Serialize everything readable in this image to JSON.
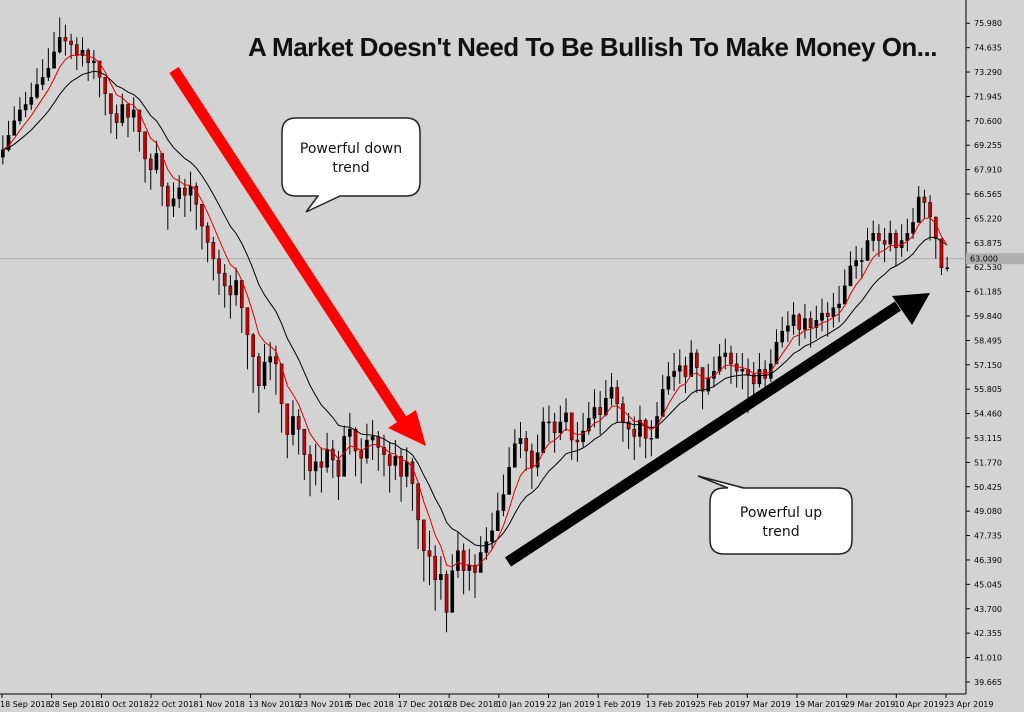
{
  "title": "A Market Doesn't Need To Be Bullish To Make Money On...",
  "price_marker": "63.000",
  "callouts": {
    "down": [
      "Powerful down",
      "trend"
    ],
    "up": [
      "Powerful up",
      "trend"
    ]
  },
  "colors": {
    "background": "#d3d3d3",
    "bull_candle": "#000000",
    "bear_candle": "#cc0000",
    "fast_ma": "#e00000",
    "slow_ma": "#000000",
    "down_arrow": "#ff0000",
    "up_arrow": "#000000",
    "price_line": "#b0b0b0"
  },
  "chart_data": {
    "type": "candlestick",
    "y_ticks": [
      "75.980",
      "74.635",
      "73.290",
      "71.945",
      "70.600",
      "69.255",
      "67.910",
      "66.565",
      "65.220",
      "63.875",
      "62.530",
      "61.185",
      "59.840",
      "58.495",
      "57.150",
      "55.805",
      "54.460",
      "53.115",
      "51.770",
      "50.425",
      "49.080",
      "47.735",
      "46.390",
      "45.045",
      "43.700",
      "42.355",
      "41.010",
      "39.665"
    ],
    "x_ticks": [
      "18 Sep 2018",
      "28 Sep 2018",
      "10 Oct 2018",
      "22 Oct 2018",
      "1 Nov 2018",
      "13 Nov 2018",
      "23 Nov 2018",
      "5 Dec 2018",
      "17 Dec 2018",
      "28 Dec 2018",
      "10 Jan 2019",
      "22 Jan 2019",
      "1 Feb 2019",
      "13 Feb 2019",
      "25 Feb 2019",
      "7 Mar 2019",
      "19 Mar 2019",
      "29 Mar 2019",
      "10 Apr 2019",
      "23 Apr 2019"
    ],
    "ylim": [
      39.0,
      76.6
    ],
    "series": [
      {
        "name": "",
        "kind": "ema_fast"
      },
      {
        "name": "",
        "kind": "ema_slow"
      }
    ],
    "closes": [
      69.0,
      69.8,
      70.6,
      71.2,
      71.5,
      71.9,
      72.6,
      73.0,
      73.5,
      74.4,
      75.2,
      75.0,
      74.8,
      74.2,
      74.5,
      73.8,
      73.9,
      73.0,
      72.1,
      71.0,
      70.5,
      71.5,
      70.8,
      71.2,
      70.0,
      68.5,
      67.9,
      68.8,
      67.0,
      65.9,
      66.3,
      66.9,
      66.5,
      67.0,
      66.0,
      64.8,
      63.9,
      63.0,
      62.2,
      61.5,
      61.0,
      61.8,
      60.3,
      58.8,
      57.6,
      56.0,
      57.3,
      57.6,
      57.2,
      55.0,
      53.3,
      54.3,
      53.6,
      52.2,
      51.3,
      51.8,
      51.5,
      52.5,
      51.9,
      51.0,
      53.2,
      53.6,
      52.4,
      52.0,
      53.0,
      53.2,
      52.6,
      52.2,
      51.6,
      52.1,
      51.0,
      51.8,
      50.6,
      48.6,
      46.9,
      46.6,
      45.3,
      45.6,
      43.5,
      45.8,
      46.9,
      45.8,
      46.1,
      45.7,
      46.8,
      47.4,
      48.0,
      49.1,
      50.0,
      51.5,
      52.8,
      53.1,
      52.4,
      51.5,
      52.3,
      54.0,
      54.0,
      53.4,
      54.0,
      54.5,
      53.0,
      52.9,
      53.5,
      54.2,
      54.8,
      54.4,
      55.3,
      55.9,
      55.0,
      54.0,
      53.6,
      53.2,
      54.1,
      53.1,
      53.1,
      54.3,
      55.8,
      56.5,
      56.8,
      57.1,
      56.5,
      57.8,
      57.0,
      55.7,
      56.4,
      56.8,
      57.6,
      57.8,
      57.2,
      56.8,
      56.9,
      56.6,
      56.1,
      56.9,
      56.4,
      57.2,
      58.4,
      59.0,
      59.3,
      59.9,
      59.1,
      59.7,
      59.2,
      59.6,
      60.0,
      59.8,
      60.3,
      60.5,
      61.5,
      62.6,
      62.9,
      62.9,
      64.0,
      64.4,
      64.0,
      63.8,
      64.4,
      63.6,
      64.0,
      64.4,
      65.0,
      66.4,
      66.1,
      65.3,
      64.1,
      62.5,
      62.5
    ],
    "highs": [
      69.8,
      70.6,
      71.4,
      71.9,
      72.2,
      72.7,
      73.5,
      74.0,
      74.6,
      75.5,
      76.3,
      75.9,
      75.4,
      75.2,
      75.2,
      74.6,
      74.5,
      73.8,
      73.0,
      71.9,
      71.5,
      72.1,
      71.6,
      71.9,
      71.2,
      69.8,
      68.8,
      69.5,
      68.3,
      67.2,
      67.2,
      67.6,
      67.4,
      67.8,
      67.2,
      66.0,
      65.0,
      64.2,
      63.5,
      62.7,
      62.1,
      62.5,
      61.7,
      60.2,
      58.9,
      57.8,
      58.3,
      58.4,
      58.2,
      56.9,
      54.9,
      55.2,
      54.7,
      53.6,
      52.7,
      52.8,
      52.6,
      53.4,
      53.0,
      52.4,
      53.8,
      54.5,
      53.7,
      53.1,
      53.9,
      54.1,
      53.5,
      53.3,
      52.9,
      53.0,
      52.5,
      52.6,
      52.0,
      50.1,
      48.5,
      48.0,
      47.2,
      46.6,
      45.8,
      46.7,
      47.9,
      47.3,
      47.0,
      46.7,
      47.7,
      48.2,
      49.0,
      50.1,
      51.1,
      52.6,
      53.6,
      54.0,
      53.5,
      52.8,
      53.3,
      54.8,
      54.9,
      54.5,
      54.9,
      55.3,
      54.5,
      54.0,
      54.5,
      55.1,
      55.8,
      55.7,
      56.3,
      56.7,
      56.3,
      55.4,
      54.5,
      54.3,
      54.9,
      54.2,
      54.1,
      55.1,
      56.6,
      57.3,
      57.8,
      58.0,
      57.6,
      58.5,
      58.0,
      57.0,
      57.2,
      57.6,
      58.3,
      58.6,
      58.2,
      57.8,
      57.8,
      57.5,
      57.3,
      57.8,
      57.4,
      58.0,
      59.1,
      59.8,
      60.1,
      60.6,
      60.0,
      60.5,
      60.1,
      60.4,
      60.8,
      60.6,
      61.1,
      61.5,
      62.4,
      63.4,
      63.7,
      63.6,
      64.7,
      65.1,
      64.9,
      64.7,
      65.1,
      64.6,
      64.9,
      65.2,
      65.8,
      67.0,
      66.8,
      66.5,
      65.2,
      64.0,
      63.1
    ],
    "lows": [
      68.2,
      68.9,
      69.9,
      70.4,
      70.8,
      71.2,
      71.8,
      72.3,
      72.8,
      73.6,
      74.3,
      74.2,
      74.0,
      73.4,
      73.6,
      72.8,
      72.9,
      71.9,
      70.9,
      69.9,
      69.6,
      70.3,
      69.7,
      70.0,
      68.9,
      67.2,
      66.8,
      67.7,
      65.9,
      64.6,
      65.3,
      65.8,
      65.3,
      65.6,
      64.6,
      63.5,
      62.8,
      61.8,
      61.0,
      60.3,
      59.7,
      60.4,
      58.9,
      56.9,
      55.6,
      54.5,
      55.8,
      56.3,
      55.5,
      53.4,
      52.0,
      52.7,
      52.2,
      50.8,
      49.9,
      50.5,
      50.1,
      51.2,
      50.9,
      49.7,
      51.6,
      52.2,
      51.0,
      50.6,
      51.7,
      51.9,
      51.3,
      51.0,
      50.1,
      50.8,
      49.6,
      50.4,
      49.1,
      47.0,
      45.2,
      45.0,
      43.6,
      44.2,
      42.4,
      44.3,
      45.4,
      44.5,
      44.7,
      44.3,
      45.8,
      46.4,
      47.0,
      48.0,
      48.8,
      50.3,
      51.6,
      52.0,
      51.3,
      50.3,
      51.0,
      52.6,
      52.9,
      52.3,
      53.0,
      53.5,
      51.9,
      51.8,
      52.6,
      53.3,
      53.7,
      53.3,
      54.3,
      54.9,
      54.0,
      52.9,
      52.5,
      51.9,
      52.6,
      52.0,
      52.1,
      53.3,
      54.7,
      55.5,
      55.7,
      56.1,
      55.6,
      56.8,
      55.6,
      54.7,
      55.5,
      55.9,
      56.6,
      56.9,
      56.1,
      55.9,
      55.8,
      54.5,
      55.1,
      55.9,
      55.4,
      56.2,
      57.4,
      58.1,
      58.4,
      58.8,
      58.2,
      58.6,
      58.1,
      58.6,
      59.0,
      58.7,
      59.2,
      59.5,
      60.5,
      61.6,
      61.9,
      61.9,
      63.0,
      63.4,
      63.1,
      62.8,
      63.4,
      62.6,
      63.1,
      63.4,
      64.1,
      65.5,
      65.2,
      64.0,
      63.0,
      62.1,
      62.3
    ]
  }
}
